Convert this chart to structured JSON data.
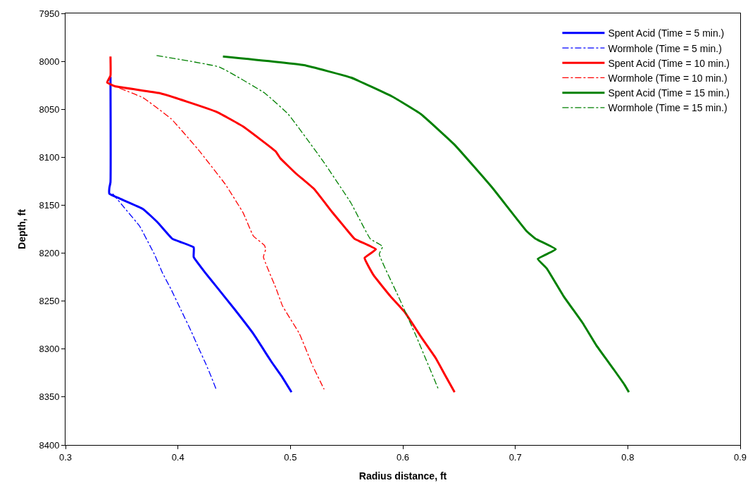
{
  "chart_data": {
    "type": "line",
    "xlabel": "Radius distance, ft",
    "ylabel": "Depth, ft",
    "xlim": [
      0.3,
      0.9
    ],
    "xticks": [
      0.3,
      0.4,
      0.5,
      0.6,
      0.7,
      0.8,
      0.9
    ],
    "ylim": [
      8400,
      7950
    ],
    "yticks": [
      7950,
      8000,
      8050,
      8100,
      8150,
      8200,
      8250,
      8300,
      8350,
      8400
    ],
    "legend": "top right",
    "marker": "none",
    "series": [
      {
        "name": "Spent Acid (Time = 5 min.)",
        "color": "#0000ff",
        "line_style": "solid",
        "x": [
          0.34,
          0.34,
          0.339,
          0.339,
          0.348,
          0.369,
          0.382,
          0.395,
          0.414,
          0.414,
          0.424,
          0.435,
          0.45,
          0.467,
          0.483,
          0.492,
          0.501
        ],
        "values": [
          8016,
          8126,
          8132,
          8138,
          8143,
          8154,
          8168,
          8185,
          8194,
          8204,
          8220,
          8236,
          8258,
          8284,
          8313,
          8328,
          8345
        ]
      },
      {
        "name": "Wormhole (Time = 5 min.)",
        "color": "#0000ff",
        "line_style": "dashed",
        "x": [
          0.342,
          0.354,
          0.366,
          0.375,
          0.379,
          0.386,
          0.394,
          0.403,
          0.412,
          0.418,
          0.425,
          0.43,
          0.434
        ],
        "values": [
          8138,
          8155,
          8172,
          8192,
          8201,
          8220,
          8238,
          8260,
          8282,
          8298,
          8316,
          8330,
          8342
        ]
      },
      {
        "name": "Spent Acid (Time = 10 min.)",
        "color": "#ff0000",
        "line_style": "solid",
        "x": [
          0.34,
          0.34,
          0.337,
          0.344,
          0.383,
          0.408,
          0.435,
          0.458,
          0.487,
          0.491,
          0.505,
          0.521,
          0.537,
          0.549,
          0.557,
          0.576,
          0.566,
          0.574,
          0.589,
          0.602,
          0.616,
          0.629,
          0.637,
          0.646
        ],
        "values": [
          7995,
          8015,
          8022,
          8026,
          8033,
          8042,
          8053,
          8068,
          8094,
          8101,
          8117,
          8133,
          8157,
          8174,
          8185,
          8196,
          8205,
          8223,
          8245,
          8262,
          8287,
          8309,
          8326,
          8345
        ]
      },
      {
        "name": "Wormhole (Time = 10 min.)",
        "color": "#ff0000",
        "line_style": "dashed",
        "x": [
          0.348,
          0.369,
          0.394,
          0.418,
          0.442,
          0.458,
          0.467,
          0.477,
          0.478,
          0.476,
          0.487,
          0.493,
          0.508,
          0.52,
          0.53
        ],
        "values": [
          8028,
          8038,
          8060,
          8092,
          8128,
          8158,
          8182,
          8192,
          8196,
          8204,
          8236,
          8255,
          8284,
          8318,
          8342
        ]
      },
      {
        "name": "Spent Acid (Time = 15 min.)",
        "color": "#008000",
        "line_style": "solid",
        "x": [
          0.44,
          0.512,
          0.554,
          0.591,
          0.616,
          0.646,
          0.679,
          0.71,
          0.718,
          0.736,
          0.72,
          0.728,
          0.743,
          0.76,
          0.772,
          0.788,
          0.797,
          0.801
        ],
        "values": [
          7995,
          8004,
          8017,
          8037,
          8055,
          8087,
          8131,
          8177,
          8185,
          8196,
          8206,
          8216,
          8245,
          8273,
          8296,
          8322,
          8337,
          8345
        ]
      },
      {
        "name": "Wormhole (Time = 15 min.)",
        "color": "#008000",
        "line_style": "dashed",
        "x": [
          0.381,
          0.437,
          0.477,
          0.498,
          0.529,
          0.554,
          0.571,
          0.582,
          0.579,
          0.596,
          0.612,
          0.632
        ],
        "values": [
          7994,
          8006,
          8033,
          8055,
          8104,
          8148,
          8185,
          8193,
          8201,
          8245,
          8287,
          8343
        ]
      }
    ]
  }
}
